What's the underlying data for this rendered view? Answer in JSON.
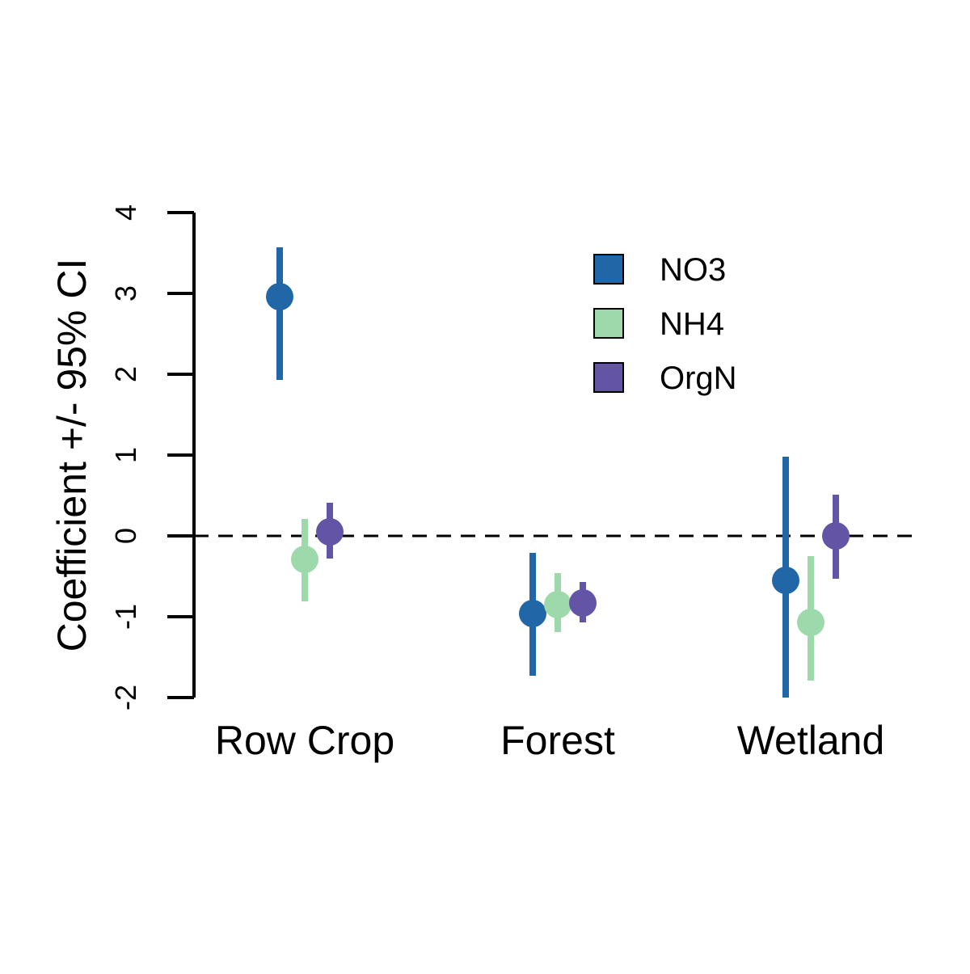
{
  "chart_data": {
    "type": "scatter",
    "ylabel": "Coefficient +/- 95% CI",
    "xlabel": "",
    "categories": [
      "Row Crop",
      "Forest",
      "Wetland"
    ],
    "ylim": [
      -2,
      4
    ],
    "yticks": [
      "-2",
      "-1",
      "0",
      "1",
      "2",
      "3",
      "4"
    ],
    "reference_line": {
      "y": 0,
      "style": "dashed"
    },
    "legend": {
      "position": "top-right"
    },
    "series": [
      {
        "name": "NO3",
        "color": "#2167a8",
        "estimates": [
          2.96,
          -0.96,
          -0.55
        ],
        "lower": [
          1.93,
          -1.73,
          -2.0
        ],
        "upper": [
          3.57,
          -0.21,
          0.98
        ]
      },
      {
        "name": "NH4",
        "color": "#9dd9ab",
        "estimates": [
          -0.29,
          -0.85,
          -1.07
        ],
        "lower": [
          -0.81,
          -1.19,
          -1.79
        ],
        "upper": [
          0.21,
          -0.46,
          -0.25
        ]
      },
      {
        "name": "OrgN",
        "color": "#6354a6",
        "estimates": [
          0.05,
          -0.83,
          0.0
        ],
        "lower": [
          -0.28,
          -1.07,
          -0.53
        ],
        "upper": [
          0.41,
          -0.57,
          0.51
        ]
      }
    ]
  }
}
